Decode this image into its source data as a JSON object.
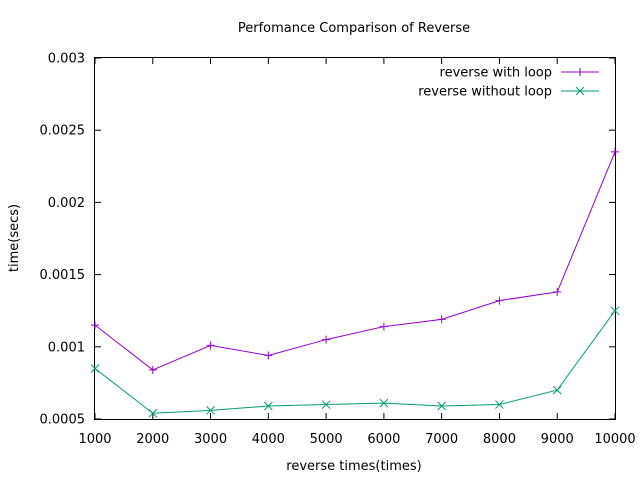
{
  "chart_data": {
    "type": "line",
    "title": "Perfomance Comparison of Reverse",
    "xlabel": "reverse times(times)",
    "ylabel": "time(secs)",
    "xlim": [
      1000,
      10000
    ],
    "ylim": [
      0.0005,
      0.003
    ],
    "x_ticks": [
      1000,
      2000,
      3000,
      4000,
      5000,
      6000,
      7000,
      8000,
      9000,
      10000
    ],
    "x_tick_labels": [
      "1000",
      "2000",
      "3000",
      "4000",
      "5000",
      "6000",
      "7000",
      "8000",
      "9000",
      "10000"
    ],
    "y_ticks": [
      0.0005,
      0.001,
      0.0015,
      0.002,
      0.0025,
      0.003
    ],
    "y_tick_labels": [
      "0.0005",
      "0.001",
      "0.0015",
      "0.002",
      "0.0025",
      "0.003"
    ],
    "grid": false,
    "legend_position": "top-right",
    "x": [
      1000,
      2000,
      3000,
      4000,
      5000,
      6000,
      7000,
      8000,
      9000,
      10000
    ],
    "series": [
      {
        "name": "reverse with loop",
        "marker": "plus",
        "color": "#9400D3",
        "values": [
          0.00115,
          0.00084,
          0.00101,
          0.00094,
          0.00105,
          0.00114,
          0.00119,
          0.00132,
          0.00138,
          0.00235
        ]
      },
      {
        "name": "reverse without loop",
        "marker": "cross",
        "color": "#009E73",
        "values": [
          0.00085,
          0.00054,
          0.00056,
          0.00059,
          0.0006,
          0.00061,
          0.00059,
          0.0006,
          0.0007,
          0.00125
        ]
      }
    ]
  }
}
